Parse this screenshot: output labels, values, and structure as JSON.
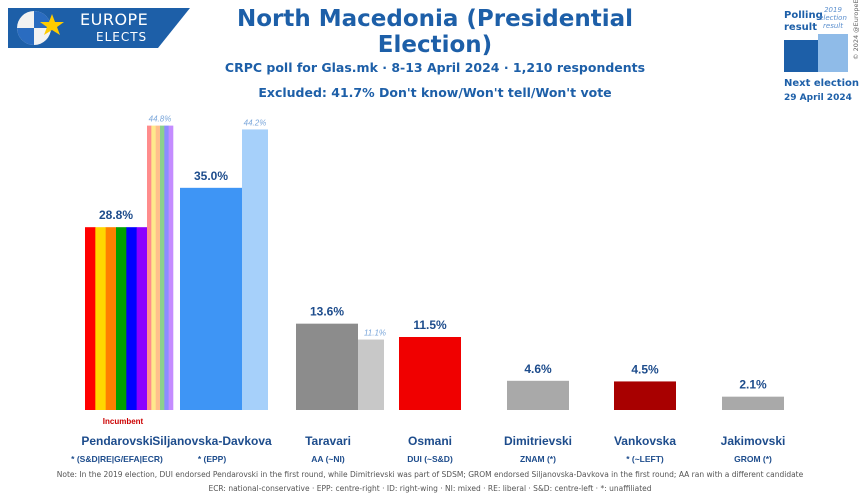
{
  "header": {
    "logo_line1": "EUROPE",
    "logo_line2": "ELECTS",
    "title": "North Macedonia (Presidential Election)",
    "subtitle1": "CRPC poll for Glas.mk · 8-13 April 2024 · 1,210 respondents",
    "subtitle2": "Excluded: 41.7% Don't know/Won't tell/Won't vote"
  },
  "legend": {
    "polling_label": "Polling result",
    "election_label": "2019 election result",
    "next_election_label": "Next election:",
    "next_election_date": "29 April 2024",
    "copyright": "© 2024 @EuropeElects"
  },
  "notes": {
    "line1": "Note: In the 2019 election, DUI endorsed Pendarovski in the first round, while Dimitrievski was part of SDSM; GROM endorsed Siljanovska-Davkova in the first round; AA ran with a different candidate",
    "line2": "ECR: national-conservative · EPP: centre-right · ID: right-wing · NI: mixed · RE: liberal · S&D: centre-left · *: unaffiliated"
  },
  "colors": {
    "brand": "#1d5fa8",
    "epp": "#3e95f5",
    "epp_light": "#a6d0fa",
    "ni": "#8c8c8c",
    "ni_light": "#c8c8c8",
    "dui": "#f00000",
    "left": "#a80000",
    "grey": "#a9a9a9",
    "rainbow": [
      "#ff0000",
      "#ffd700",
      "#ff7f00",
      "#00a000",
      "#0000ff",
      "#8b00ff"
    ],
    "rainbow_light": [
      "#ff8c8c",
      "#ffe98c",
      "#ffc08c",
      "#8cd08c",
      "#8c8cff",
      "#c48cff"
    ]
  },
  "chart_data": {
    "type": "bar",
    "categories": [
      "Pendarovski",
      "Siljanovska-Davkova",
      "Taravari",
      "Osmani",
      "Dimitrievski",
      "Vankovska",
      "Jakimovski"
    ],
    "parties": [
      "* (S&D|RE|G/EFA|ECR)",
      "* (EPP)",
      "AA (~NI)",
      "DUI (~S&D)",
      "ZNAM (*)",
      "* (~LEFT)",
      "GROM (*)"
    ],
    "series": [
      {
        "name": "Polling result",
        "values": [
          28.8,
          35.0,
          13.6,
          11.5,
          4.6,
          4.5,
          2.1
        ]
      },
      {
        "name": "2019 election result",
        "values": [
          44.8,
          44.2,
          11.1,
          null,
          null,
          null,
          null
        ]
      }
    ],
    "value_labels": [
      "28.8%",
      "35.0%",
      "13.6%",
      "11.5%",
      "4.6%",
      "4.5%",
      "2.1%"
    ],
    "previous_labels": [
      "44.8%",
      "44.2%",
      "11.1%",
      "",
      "",
      "",
      ""
    ],
    "annotations": {
      "incumbent": "Incumbent",
      "incumbent_index": 0
    },
    "ylim": [
      0,
      46
    ]
  }
}
